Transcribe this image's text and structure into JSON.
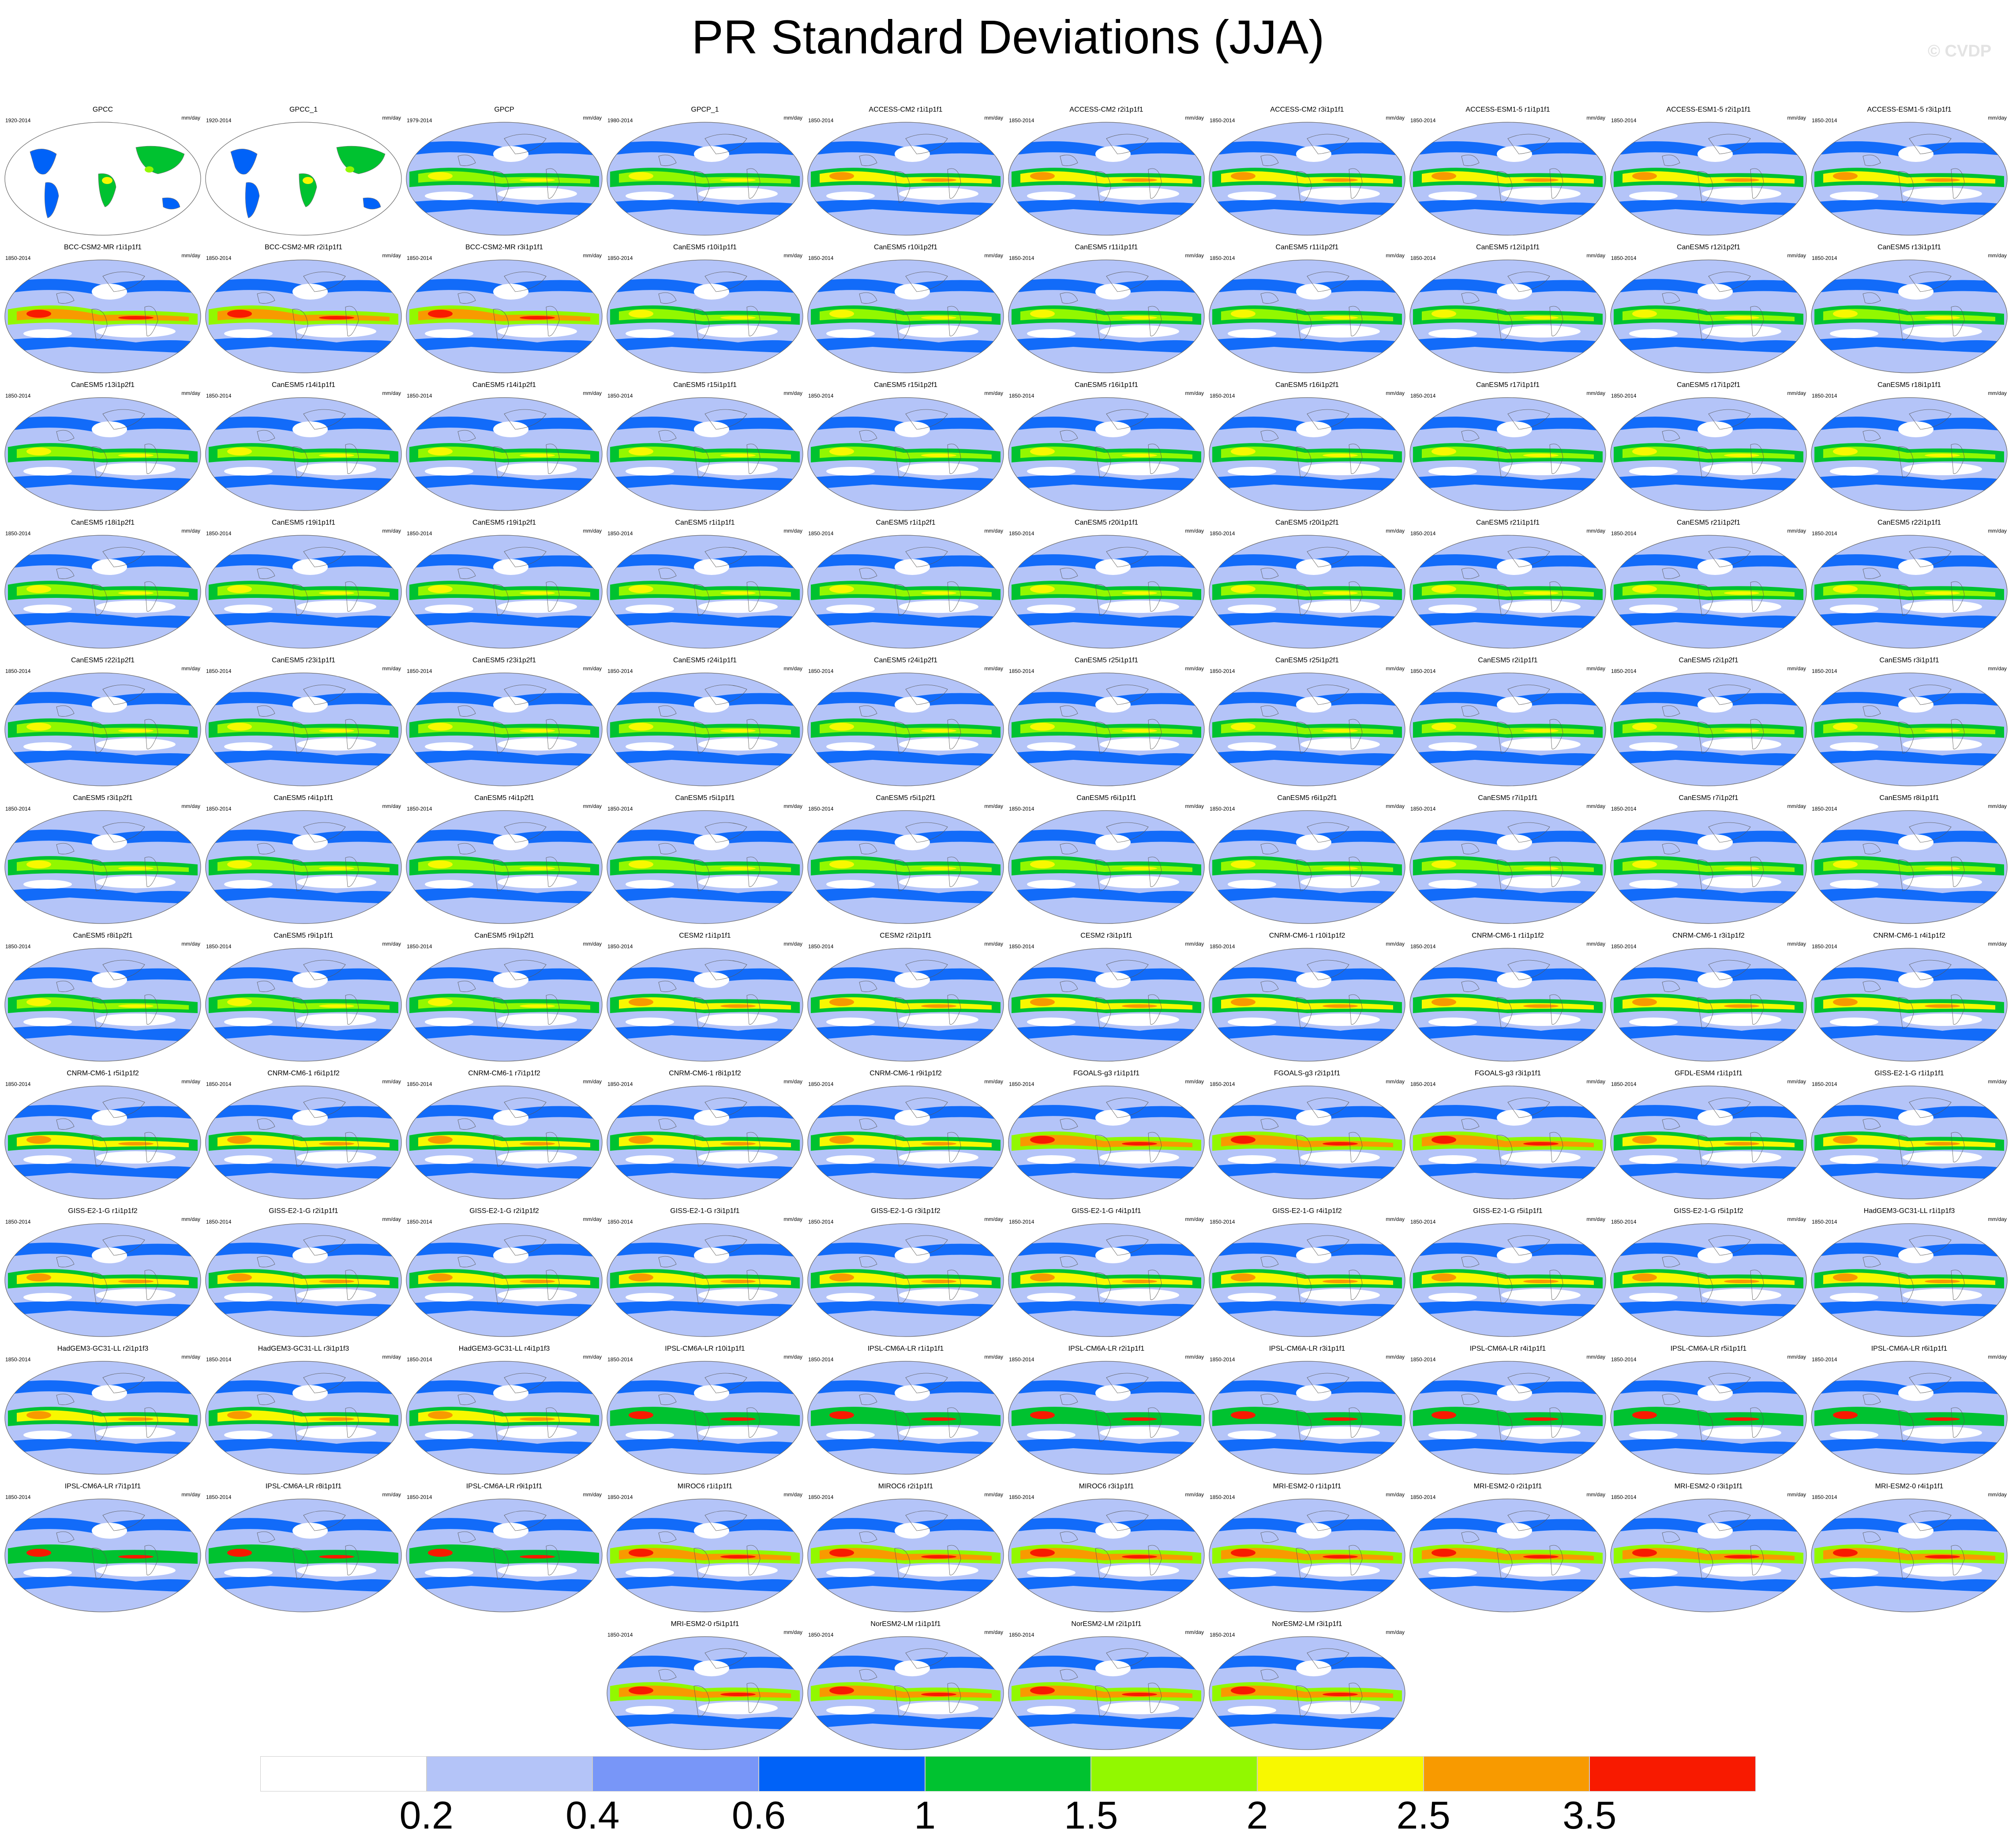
{
  "title": "PR Standard Deviations (JJA)",
  "watermark": "© CVDP",
  "units": "mm/day",
  "icons": {
    "map": "world-map-icon"
  },
  "panels": [
    {
      "title": "GPCC",
      "years": "1920-2014",
      "kind": "obs_land"
    },
    {
      "title": "GPCC_1",
      "years": "1920-2014",
      "kind": "obs_land"
    },
    {
      "title": "GPCP",
      "years": "1979-2014",
      "kind": "obs"
    },
    {
      "title": "GPCP_1",
      "years": "1980-2014",
      "kind": "obs"
    },
    {
      "title": "ACCESS-CM2 r1i1p1f1",
      "years": "1850-2014",
      "kind": "high"
    },
    {
      "title": "ACCESS-CM2 r2i1p1f1",
      "years": "1850-2014",
      "kind": "high"
    },
    {
      "title": "ACCESS-CM2 r3i1p1f1",
      "years": "1850-2014",
      "kind": "high"
    },
    {
      "title": "ACCESS-ESM1-5 r1i1p1f1",
      "years": "1850-2014",
      "kind": "high"
    },
    {
      "title": "ACCESS-ESM1-5 r2i1p1f1",
      "years": "1850-2014",
      "kind": "high"
    },
    {
      "title": "ACCESS-ESM1-5 r3i1p1f1",
      "years": "1850-2014",
      "kind": "high"
    },
    {
      "title": "BCC-CSM2-MR r1i1p1f1",
      "years": "1850-2014",
      "kind": "veryhigh"
    },
    {
      "title": "BCC-CSM2-MR r2i1p1f1",
      "years": "1850-2014",
      "kind": "veryhigh"
    },
    {
      "title": "BCC-CSM2-MR r3i1p1f1",
      "years": "1850-2014",
      "kind": "veryhigh"
    },
    {
      "title": "CanESM5 r10i1p1f1",
      "years": "1850-2014",
      "kind": "mid"
    },
    {
      "title": "CanESM5 r10i1p2f1",
      "years": "1850-2014",
      "kind": "mid"
    },
    {
      "title": "CanESM5 r11i1p1f1",
      "years": "1850-2014",
      "kind": "mid"
    },
    {
      "title": "CanESM5 r11i1p2f1",
      "years": "1850-2014",
      "kind": "mid"
    },
    {
      "title": "CanESM5 r12i1p1f1",
      "years": "1850-2014",
      "kind": "mid"
    },
    {
      "title": "CanESM5 r12i1p2f1",
      "years": "1850-2014",
      "kind": "mid"
    },
    {
      "title": "CanESM5 r13i1p1f1",
      "years": "1850-2014",
      "kind": "mid"
    },
    {
      "title": "CanESM5 r13i1p2f1",
      "years": "1850-2014",
      "kind": "mid"
    },
    {
      "title": "CanESM5 r14i1p1f1",
      "years": "1850-2014",
      "kind": "mid"
    },
    {
      "title": "CanESM5 r14i1p2f1",
      "years": "1850-2014",
      "kind": "mid"
    },
    {
      "title": "CanESM5 r15i1p1f1",
      "years": "1850-2014",
      "kind": "mid"
    },
    {
      "title": "CanESM5 r15i1p2f1",
      "years": "1850-2014",
      "kind": "mid"
    },
    {
      "title": "CanESM5 r16i1p1f1",
      "years": "1850-2014",
      "kind": "mid"
    },
    {
      "title": "CanESM5 r16i1p2f1",
      "years": "1850-2014",
      "kind": "mid"
    },
    {
      "title": "CanESM5 r17i1p1f1",
      "years": "1850-2014",
      "kind": "mid"
    },
    {
      "title": "CanESM5 r17i1p2f1",
      "years": "1850-2014",
      "kind": "mid"
    },
    {
      "title": "CanESM5 r18i1p1f1",
      "years": "1850-2014",
      "kind": "mid"
    },
    {
      "title": "CanESM5 r18i1p2f1",
      "years": "1850-2014",
      "kind": "mid"
    },
    {
      "title": "CanESM5 r19i1p1f1",
      "years": "1850-2014",
      "kind": "mid"
    },
    {
      "title": "CanESM5 r19i1p2f1",
      "years": "1850-2014",
      "kind": "mid"
    },
    {
      "title": "CanESM5 r1i1p1f1",
      "years": "1850-2014",
      "kind": "mid"
    },
    {
      "title": "CanESM5 r1i1p2f1",
      "years": "1850-2014",
      "kind": "mid"
    },
    {
      "title": "CanESM5 r20i1p1f1",
      "years": "1850-2014",
      "kind": "mid"
    },
    {
      "title": "CanESM5 r20i1p2f1",
      "years": "1850-2014",
      "kind": "mid"
    },
    {
      "title": "CanESM5 r21i1p1f1",
      "years": "1850-2014",
      "kind": "mid"
    },
    {
      "title": "CanESM5 r21i1p2f1",
      "years": "1850-2014",
      "kind": "mid"
    },
    {
      "title": "CanESM5 r22i1p1f1",
      "years": "1850-2014",
      "kind": "mid"
    },
    {
      "title": "CanESM5 r22i1p2f1",
      "years": "1850-2014",
      "kind": "mid"
    },
    {
      "title": "CanESM5 r23i1p1f1",
      "years": "1850-2014",
      "kind": "mid"
    },
    {
      "title": "CanESM5 r23i1p2f1",
      "years": "1850-2014",
      "kind": "mid"
    },
    {
      "title": "CanESM5 r24i1p1f1",
      "years": "1850-2014",
      "kind": "mid"
    },
    {
      "title": "CanESM5 r24i1p2f1",
      "years": "1850-2014",
      "kind": "mid"
    },
    {
      "title": "CanESM5 r25i1p1f1",
      "years": "1850-2014",
      "kind": "mid"
    },
    {
      "title": "CanESM5 r25i1p2f1",
      "years": "1850-2014",
      "kind": "mid"
    },
    {
      "title": "CanESM5 r2i1p1f1",
      "years": "1850-2014",
      "kind": "mid"
    },
    {
      "title": "CanESM5 r2i1p2f1",
      "years": "1850-2014",
      "kind": "mid"
    },
    {
      "title": "CanESM5 r3i1p1f1",
      "years": "1850-2014",
      "kind": "mid"
    },
    {
      "title": "CanESM5 r3i1p2f1",
      "years": "1850-2014",
      "kind": "mid"
    },
    {
      "title": "CanESM5 r4i1p1f1",
      "years": "1850-2014",
      "kind": "mid"
    },
    {
      "title": "CanESM5 r4i1p2f1",
      "years": "1850-2014",
      "kind": "mid"
    },
    {
      "title": "CanESM5 r5i1p1f1",
      "years": "1850-2014",
      "kind": "mid"
    },
    {
      "title": "CanESM5 r5i1p2f1",
      "years": "1850-2014",
      "kind": "mid"
    },
    {
      "title": "CanESM5 r6i1p1f1",
      "years": "1850-2014",
      "kind": "mid"
    },
    {
      "title": "CanESM5 r6i1p2f1",
      "years": "1850-2014",
      "kind": "mid"
    },
    {
      "title": "CanESM5 r7i1p1f1",
      "years": "1850-2014",
      "kind": "mid"
    },
    {
      "title": "CanESM5 r7i1p2f1",
      "years": "1850-2014",
      "kind": "mid"
    },
    {
      "title": "CanESM5 r8i1p1f1",
      "years": "1850-2014",
      "kind": "mid"
    },
    {
      "title": "CanESM5 r8i1p2f1",
      "years": "1850-2014",
      "kind": "mid"
    },
    {
      "title": "CanESM5 r9i1p1f1",
      "years": "1850-2014",
      "kind": "mid"
    },
    {
      "title": "CanESM5 r9i1p2f1",
      "years": "1850-2014",
      "kind": "mid"
    },
    {
      "title": "CESM2 r1i1p1f1",
      "years": "1850-2014",
      "kind": "high"
    },
    {
      "title": "CESM2 r2i1p1f1",
      "years": "1850-2014",
      "kind": "high"
    },
    {
      "title": "CESM2 r3i1p1f1",
      "years": "1850-2014",
      "kind": "high"
    },
    {
      "title": "CNRM-CM6-1 r10i1p1f2",
      "years": "1850-2014",
      "kind": "high"
    },
    {
      "title": "CNRM-CM6-1 r1i1p1f2",
      "years": "1850-2014",
      "kind": "high"
    },
    {
      "title": "CNRM-CM6-1 r3i1p1f2",
      "years": "1850-2014",
      "kind": "high"
    },
    {
      "title": "CNRM-CM6-1 r4i1p1f2",
      "years": "1850-2014",
      "kind": "high"
    },
    {
      "title": "CNRM-CM6-1 r5i1p1f2",
      "years": "1850-2014",
      "kind": "high"
    },
    {
      "title": "CNRM-CM6-1 r6i1p1f2",
      "years": "1850-2014",
      "kind": "high"
    },
    {
      "title": "CNRM-CM6-1 r7i1p1f2",
      "years": "1850-2014",
      "kind": "high"
    },
    {
      "title": "CNRM-CM6-1 r8i1p1f2",
      "years": "1850-2014",
      "kind": "high"
    },
    {
      "title": "CNRM-CM6-1 r9i1p1f2",
      "years": "1850-2014",
      "kind": "high"
    },
    {
      "title": "FGOALS-g3 r1i1p1f1",
      "years": "1850-2014",
      "kind": "veryhigh"
    },
    {
      "title": "FGOALS-g3 r2i1p1f1",
      "years": "1850-2014",
      "kind": "veryhigh"
    },
    {
      "title": "FGOALS-g3 r3i1p1f1",
      "years": "1850-2014",
      "kind": "veryhigh"
    },
    {
      "title": "GFDL-ESM4 r1i1p1f1",
      "years": "1850-2014",
      "kind": "high"
    },
    {
      "title": "GISS-E2-1-G r1i1p1f1",
      "years": "1850-2014",
      "kind": "high"
    },
    {
      "title": "GISS-E2-1-G r1i1p1f2",
      "years": "1850-2014",
      "kind": "high"
    },
    {
      "title": "GISS-E2-1-G r2i1p1f1",
      "years": "1850-2014",
      "kind": "high"
    },
    {
      "title": "GISS-E2-1-G r2i1p1f2",
      "years": "1850-2014",
      "kind": "high"
    },
    {
      "title": "GISS-E2-1-G r3i1p1f1",
      "years": "1850-2014",
      "kind": "high"
    },
    {
      "title": "GISS-E2-1-G r3i1p1f2",
      "years": "1850-2014",
      "kind": "high"
    },
    {
      "title": "GISS-E2-1-G r4i1p1f1",
      "years": "1850-2014",
      "kind": "high"
    },
    {
      "title": "GISS-E2-1-G r4i1p1f2",
      "years": "1850-2014",
      "kind": "high"
    },
    {
      "title": "GISS-E2-1-G r5i1p1f1",
      "years": "1850-2014",
      "kind": "high"
    },
    {
      "title": "GISS-E2-1-G r5i1p1f2",
      "years": "1850-2014",
      "kind": "high"
    },
    {
      "title": "HadGEM3-GC31-LL r1i1p1f3",
      "years": "1850-2014",
      "kind": "high"
    },
    {
      "title": "HadGEM3-GC31-LL r2i1p1f3",
      "years": "1850-2014",
      "kind": "high"
    },
    {
      "title": "HadGEM3-GC31-LL r3i1p1f3",
      "years": "1850-2014",
      "kind": "high"
    },
    {
      "title": "HadGEM3-GC31-LL r4i1p1f3",
      "years": "1850-2014",
      "kind": "high"
    },
    {
      "title": "IPSL-CM6A-LR r10i1p1f1",
      "years": "1850-2014",
      "kind": "low"
    },
    {
      "title": "IPSL-CM6A-LR r1i1p1f1",
      "years": "1850-2014",
      "kind": "low"
    },
    {
      "title": "IPSL-CM6A-LR r2i1p1f1",
      "years": "1850-2014",
      "kind": "low"
    },
    {
      "title": "IPSL-CM6A-LR r3i1p1f1",
      "years": "1850-2014",
      "kind": "low"
    },
    {
      "title": "IPSL-CM6A-LR r4i1p1f1",
      "years": "1850-2014",
      "kind": "low"
    },
    {
      "title": "IPSL-CM6A-LR r5i1p1f1",
      "years": "1850-2014",
      "kind": "low"
    },
    {
      "title": "IPSL-CM6A-LR r6i1p1f1",
      "years": "1850-2014",
      "kind": "low"
    },
    {
      "title": "IPSL-CM6A-LR r7i1p1f1",
      "years": "1850-2014",
      "kind": "low"
    },
    {
      "title": "IPSL-CM6A-LR r8i1p1f1",
      "years": "1850-2014",
      "kind": "low"
    },
    {
      "title": "IPSL-CM6A-LR r9i1p1f1",
      "years": "1850-2014",
      "kind": "low"
    },
    {
      "title": "MIROC6 r1i1p1f1",
      "years": "1850-2014",
      "kind": "veryhigh"
    },
    {
      "title": "MIROC6 r2i1p1f1",
      "years": "1850-2014",
      "kind": "veryhigh"
    },
    {
      "title": "MIROC6 r3i1p1f1",
      "years": "1850-2014",
      "kind": "veryhigh"
    },
    {
      "title": "MRI-ESM2-0 r1i1p1f1",
      "years": "1850-2014",
      "kind": "veryhigh"
    },
    {
      "title": "MRI-ESM2-0 r2i1p1f1",
      "years": "1850-2014",
      "kind": "veryhigh"
    },
    {
      "title": "MRI-ESM2-0 r3i1p1f1",
      "years": "1850-2014",
      "kind": "veryhigh"
    },
    {
      "title": "MRI-ESM2-0 r4i1p1f1",
      "years": "1850-2014",
      "kind": "veryhigh"
    },
    {
      "title": "MRI-ESM2-0 r5i1p1f1",
      "years": "1850-2014",
      "kind": "veryhigh"
    },
    {
      "title": "NorESM2-LM r1i1p1f1",
      "years": "1850-2014",
      "kind": "veryhigh"
    },
    {
      "title": "NorESM2-LM r2i1p1f1",
      "years": "1850-2014",
      "kind": "veryhigh"
    },
    {
      "title": "NorESM2-LM r3i1p1f1",
      "years": "1850-2014",
      "kind": "veryhigh"
    }
  ],
  "colorbar": {
    "colors": [
      "#ffffff",
      "#b4c4f8",
      "#7896f8",
      "#0062f8",
      "#00c230",
      "#92f800",
      "#f8f800",
      "#f89a00",
      "#f81a00"
    ],
    "labels": [
      "0.2",
      "0.4",
      "0.6",
      "1",
      "1.5",
      "2",
      "2.5",
      "3.5"
    ],
    "levels": [
      0.2,
      0.4,
      0.6,
      1,
      1.5,
      2,
      2.5,
      3.5
    ]
  }
}
